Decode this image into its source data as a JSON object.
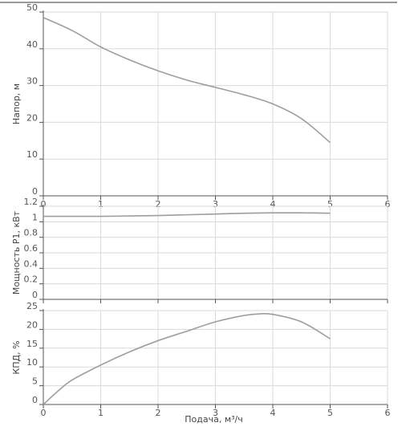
{
  "chart_data": [
    {
      "type": "line",
      "ylabel": "Напор, м",
      "xlabel": "",
      "xlim": [
        0,
        6
      ],
      "ylim": [
        0,
        50
      ],
      "x_ticks": [
        "0",
        "1",
        "2",
        "3",
        "4",
        "5",
        "6"
      ],
      "y_ticks": [
        "0",
        "10",
        "20",
        "30",
        "40",
        "50"
      ],
      "grid": true,
      "color": "#9e9e9e",
      "series": [
        {
          "x": [
            0,
            0.5,
            1,
            1.5,
            2,
            2.5,
            3,
            3.5,
            4,
            4.5,
            5
          ],
          "values": [
            48.5,
            45,
            40.5,
            37,
            34,
            31.5,
            29.5,
            27.5,
            25,
            21,
            14.5
          ]
        }
      ]
    },
    {
      "type": "line",
      "ylabel": "Мощность P1, кВт",
      "xlabel": "",
      "xlim": [
        0,
        6
      ],
      "ylim": [
        0,
        1.2
      ],
      "x_ticks": [],
      "y_ticks": [
        "0",
        "0.2",
        "0.4",
        "0.6",
        "0.8",
        "1",
        "1.2"
      ],
      "grid": true,
      "color": "#9e9e9e",
      "series": [
        {
          "x": [
            0,
            0.5,
            1,
            1.5,
            2,
            2.5,
            3,
            3.5,
            4,
            4.5,
            5
          ],
          "values": [
            1.07,
            1.07,
            1.07,
            1.075,
            1.08,
            1.09,
            1.1,
            1.11,
            1.115,
            1.115,
            1.11
          ]
        }
      ]
    },
    {
      "type": "line",
      "ylabel": "КПД, %",
      "xlabel": "Подача, м³/ч",
      "xlim": [
        0,
        6
      ],
      "ylim": [
        0,
        25
      ],
      "x_ticks": [
        "0",
        "1",
        "2",
        "3",
        "4",
        "5",
        "6"
      ],
      "y_ticks": [
        "0",
        "5",
        "10",
        "15",
        "20",
        "25"
      ],
      "grid": true,
      "color": "#9e9e9e",
      "series": [
        {
          "x": [
            0,
            0.25,
            0.5,
            1,
            1.5,
            2,
            2.5,
            3,
            3.5,
            3.75,
            4,
            4.5,
            5
          ],
          "values": [
            0,
            3.5,
            6.5,
            10.5,
            14,
            17,
            19.5,
            22,
            23.7,
            24.1,
            24,
            22,
            17.5
          ]
        }
      ]
    }
  ]
}
